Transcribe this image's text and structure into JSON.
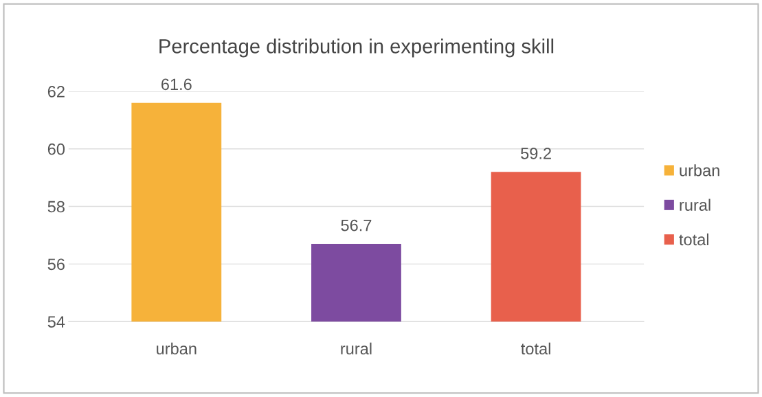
{
  "chart_data": {
    "type": "bar",
    "title": "Percentage distribution in experimenting skill",
    "categories": [
      "urban",
      "rural",
      "total"
    ],
    "series": [
      {
        "name": "urban",
        "color": "#f6b23a",
        "values": [
          61.6,
          null,
          null
        ]
      },
      {
        "name": "rural",
        "color": "#7d4ba0",
        "values": [
          null,
          56.7,
          null
        ]
      },
      {
        "name": "total",
        "color": "#e8604c",
        "values": [
          null,
          null,
          59.2
        ]
      }
    ],
    "stacked": true,
    "ylim": [
      54,
      62
    ],
    "yticks": [
      54,
      56,
      58,
      60,
      62
    ],
    "grid": "y",
    "legend": "right",
    "data_labels": true
  }
}
